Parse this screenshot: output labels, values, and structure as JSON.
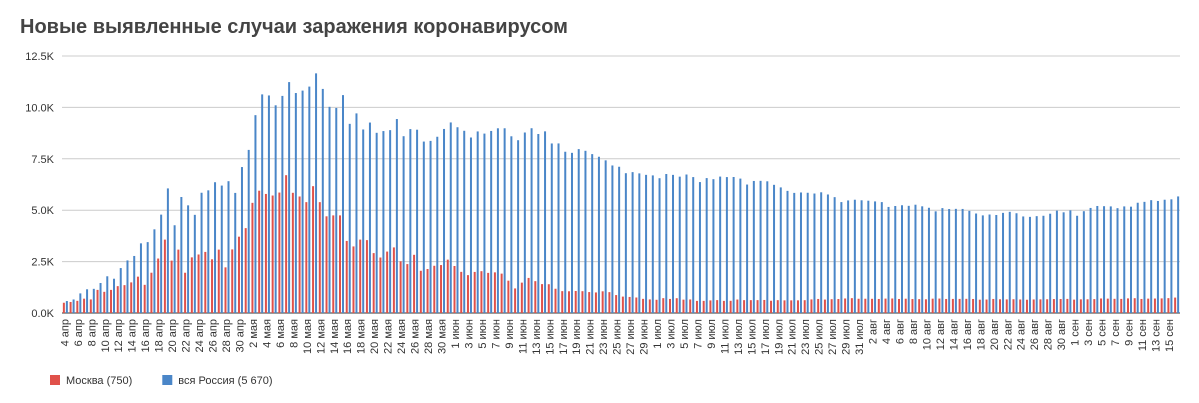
{
  "chart_data": {
    "type": "bar",
    "title": "Новые выявленные случаи заражения коронавирусом",
    "categories": [
      "4 апр",
      null,
      "6 апр",
      null,
      "8 апр",
      null,
      "10 апр",
      null,
      "12 апр",
      null,
      "14 апр",
      null,
      "16 апр",
      null,
      "18 апр",
      null,
      "20 апр",
      null,
      "22 апр",
      null,
      "24 апр",
      null,
      "26 апр",
      null,
      "28 апр",
      null,
      "30 апр",
      null,
      "2 мая",
      null,
      "4 мая",
      null,
      "6 мая",
      null,
      "8 мая",
      null,
      "10 мая",
      null,
      "12 мая",
      null,
      "14 мая",
      null,
      "16 мая",
      null,
      "18 мая",
      null,
      "20 мая",
      null,
      "22 мая",
      null,
      "24 мая",
      null,
      "26 мая",
      null,
      "28 мая",
      null,
      "30 мая",
      null,
      "1 июн",
      null,
      "3 июн",
      null,
      "5 июн",
      null,
      "7 июн",
      null,
      "9 июн",
      null,
      "11 июн",
      null,
      "13 июн",
      null,
      "15 июн",
      null,
      "17 июн",
      null,
      "19 июн",
      null,
      "21 июн",
      null,
      "23 июн",
      null,
      "25 июн",
      null,
      "27 июн",
      null,
      "29 июн",
      null,
      "1 июл",
      null,
      "3 июл",
      null,
      "5 июл",
      null,
      "7 июл",
      null,
      "9 июл",
      null,
      "11 июл",
      null,
      "13 июл",
      null,
      "15 июл",
      null,
      "17 июл",
      null,
      "19 июл",
      null,
      "21 июл",
      null,
      "23 июл",
      null,
      "25 июл",
      null,
      "27 июл",
      null,
      "29 июл",
      null,
      "31 июл",
      null,
      "2 авг",
      null,
      "4 авг",
      null,
      "6 авг",
      null,
      "8 авг",
      null,
      "10 авг",
      null,
      "12 авг",
      null,
      "14 авг",
      null,
      "16 авг",
      null,
      "18 авг",
      null,
      "20 авг",
      null,
      "22 авг",
      null,
      "24 авг",
      null,
      "26 авг",
      null,
      "28 авг",
      null,
      "30 авг",
      null,
      "1 сен",
      null,
      "3 сен",
      null,
      "5 сен",
      null,
      "7 сен",
      null,
      "9 сен",
      null,
      "11 сен",
      null,
      "13 сен",
      null,
      "15 сен",
      null
    ],
    "series": [
      {
        "name": "Москва (750)",
        "color": "#e0514a",
        "values": [
          499,
          536,
          591,
          697,
          660,
          1124,
          1030,
          1124,
          1306,
          1355,
          1489,
          1768,
          1370,
          1959,
          2649,
          3570,
          2548,
          3083,
          1958,
          2706,
          2846,
          2971,
          2612,
          3083,
          2220,
          3093,
          3712,
          4128,
          5358,
          5948,
          5791,
          5714,
          5858,
          6703,
          5846,
          5667,
          5392,
          6169,
          5392,
          4703,
          4748,
          4748,
          3505,
          3238,
          3570,
          3545,
          2913,
          2699,
          2988,
          3190,
          2516,
          2379,
          2830,
          2054,
          2140,
          2297,
          2332,
          2595,
          2286,
          2001,
          1842,
          1998,
          2034,
          1951,
          1977,
          1915,
          1572,
          1195,
          1477,
          1706,
          1549,
          1405,
          1400,
          1180,
          1063,
          1057,
          1070,
          1061,
          1018,
          1000,
          1055,
          1015,
          872,
          798,
          781,
          754,
          688,
          661,
          643,
          722,
          684,
          719,
          650,
          659,
          589,
          590,
          613,
          627,
          590,
          594,
          655,
          625,
          625,
          626,
          634,
          596,
          624,
          615,
          615,
          616,
          623,
          661,
          683,
          654,
          671,
          681,
          706,
          721,
          693,
          694,
          690,
          683,
          700,
          705,
          682,
          695,
          679,
          675,
          667,
          697,
          702,
          683,
          685,
          686,
          689,
          682,
          648,
          655,
          683,
          668,
          661,
          670,
          658,
          645,
          659,
          664,
          668,
          678,
          680,
          686,
          651,
          664,
          667,
          676,
          706,
          699,
          690,
          686,
          710,
          720,
          683,
          699,
          704,
          710,
          723,
          750
        ]
      },
      {
        "name": "вся Россия (5 670)",
        "color": "#4a86c8",
        "values": [
          582,
          658,
          954,
          1154,
          1175,
          1459,
          1786,
          1667,
          2186,
          2558,
          2774,
          3388,
          3448,
          4070,
          4785,
          6060,
          4268,
          5642,
          5236,
          4774,
          5849,
          5966,
          6361,
          6198,
          6411,
          5841,
          7099,
          7933,
          9623,
          10633,
          10581,
          10102,
          10559,
          11231,
          10699,
          10817,
          11012,
          11656,
          10899,
          10028,
          9974,
          10598,
          9200,
          9709,
          8926,
          9263,
          8764,
          8849,
          8894,
          9434,
          8599,
          8946,
          8915,
          8338,
          8371,
          8572,
          8952,
          9268,
          9035,
          8863,
          8536,
          8831,
          8726,
          8855,
          8984,
          8985,
          8595,
          8404,
          8779,
          8987,
          8706,
          8835,
          8246,
          8248,
          7843,
          7790,
          7972,
          7889,
          7728,
          7600,
          7425,
          7176,
          7113,
          6800,
          6852,
          6791,
          6719,
          6693,
          6556,
          6760,
          6718,
          6632,
          6736,
          6611,
          6368,
          6562,
          6509,
          6635,
          6611,
          6615,
          6537,
          6248,
          6422,
          6428,
          6406,
          6234,
          6109,
          5940,
          5842,
          5862,
          5848,
          5811,
          5871,
          5765,
          5635,
          5395,
          5475,
          5509,
          5482,
          5462,
          5427,
          5394,
          5159,
          5204,
          5241,
          5212,
          5267,
          5189,
          5118,
          4945,
          5102,
          5057,
          5065,
          5061,
          4969,
          4839,
          4748,
          4790,
          4767,
          4870,
          4921,
          4852,
          4696,
          4676,
          4711,
          4729,
          4829,
          4980,
          4897,
          4993,
          4729,
          4952,
          5110,
          5205,
          5195,
          5185,
          5099,
          5185,
          5172,
          5363,
          5406,
          5488,
          5449,
          5509,
          5529,
          5670
        ]
      }
    ],
    "ylim": [
      0,
      12500
    ],
    "yticks": [
      {
        "value": 0,
        "label": "0.0K"
      },
      {
        "value": 2500,
        "label": "2.5K"
      },
      {
        "value": 5000,
        "label": "5.0K"
      },
      {
        "value": 7500,
        "label": "7.5K"
      },
      {
        "value": 10000,
        "label": "10.0K"
      },
      {
        "value": 12500,
        "label": "12.5K"
      }
    ],
    "grid": true
  }
}
